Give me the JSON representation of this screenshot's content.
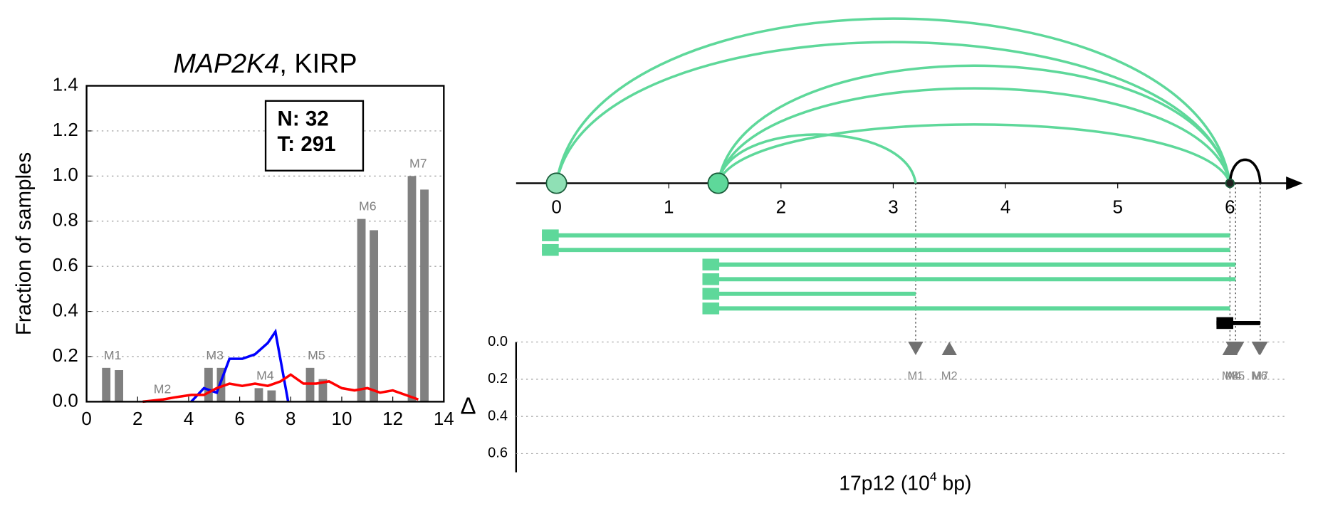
{
  "chart_data": [
    {
      "type": "bar",
      "title_parts": [
        "MAP2K4",
        ", KIRP"
      ],
      "ylabel": "Fraction of samples",
      "xlim": [
        0,
        14
      ],
      "xticks": [
        0,
        2,
        4,
        6,
        8,
        10,
        12,
        14
      ],
      "ylim": [
        0,
        1.4
      ],
      "yticks": [
        {
          "value": 0,
          "label": "0.0"
        },
        {
          "value": 0.2,
          "label": "0.2"
        },
        {
          "value": 0.4,
          "label": "0.4"
        },
        {
          "value": 0.6,
          "label": "0.6"
        },
        {
          "value": 0.8,
          "label": "0.8"
        },
        {
          "value": 1.0,
          "label": "1.0"
        },
        {
          "value": 1.2,
          "label": "1.2"
        },
        {
          "value": 1.4,
          "label": "1.4"
        }
      ],
      "grid": true,
      "box_text": [
        "N: 32",
        "T: 291"
      ],
      "bar_color": "#808080",
      "bar_groups": [
        {
          "label": "M1",
          "x": [
            0.77,
            1.27
          ],
          "values": [
            0.15,
            0.14
          ]
        },
        {
          "label": "M2",
          "x": [
            2.72,
            3.22
          ],
          "values": [
            0,
            0
          ]
        },
        {
          "label": "M3",
          "x": [
            4.78,
            5.27
          ],
          "values": [
            0.15,
            0.15
          ]
        },
        {
          "label": "M4",
          "x": [
            6.75,
            7.25
          ],
          "values": [
            0.06,
            0.05
          ]
        },
        {
          "label": "M5",
          "x": [
            8.76,
            9.26
          ],
          "values": [
            0.15,
            0.1
          ]
        },
        {
          "label": "M6",
          "x": [
            10.77,
            11.26
          ],
          "values": [
            0.81,
            0.76
          ]
        },
        {
          "label": "M7",
          "x": [
            12.75,
            13.24
          ],
          "values": [
            1.0,
            0.94
          ]
        }
      ],
      "series": [
        {
          "color": "#0000ff",
          "x": [
            4.1,
            4.6,
            5.1,
            5.6,
            6.1,
            6.6,
            7.1,
            7.4,
            7.9
          ],
          "values": [
            0,
            0.06,
            0.04,
            0.19,
            0.19,
            0.21,
            0.26,
            0.31,
            0
          ]
        },
        {
          "color": "#ff0000",
          "x": [
            2.2,
            3.0,
            3.5,
            4.1,
            4.6,
            5.1,
            5.6,
            6.1,
            6.6,
            7.1,
            7.6,
            8.0,
            8.5,
            9.0,
            9.5,
            10.0,
            10.5,
            11.0,
            11.5,
            12.0,
            12.5,
            13.0
          ],
          "values": [
            0,
            0.01,
            0.02,
            0.03,
            0.03,
            0.06,
            0.08,
            0.07,
            0.08,
            0.07,
            0.09,
            0.12,
            0.08,
            0.08,
            0.09,
            0.06,
            0.05,
            0.06,
            0.04,
            0.05,
            0.03,
            0.01
          ]
        }
      ]
    },
    {
      "type": "arc",
      "xlim": [
        -0.36,
        6.5
      ],
      "xticks": [
        0,
        1,
        2,
        3,
        4,
        5,
        6
      ],
      "xlabel_parts": [
        "17p12 (10",
        "4",
        " bp)"
      ],
      "color": "#5ed89a",
      "nodes": [
        {
          "x": 0,
          "color": "#8fe0b5"
        },
        {
          "x": 1.44,
          "color": "#5ed89a"
        },
        {
          "x": 6,
          "color": "#222222"
        }
      ],
      "arcs": [
        {
          "from": 0,
          "to": 6
        },
        {
          "from": 0,
          "to": 6
        },
        {
          "from": 1.44,
          "to": 6
        },
        {
          "from": 1.44,
          "to": 6
        },
        {
          "from": 1.44,
          "to": 6
        },
        {
          "from": 1.44,
          "to": 3.2
        },
        {
          "from": 6,
          "to": 6.27,
          "color": "#000000"
        }
      ],
      "transcripts": [
        {
          "start": -0.13,
          "end": 6.0
        },
        {
          "start": -0.13,
          "end": 6.0
        },
        {
          "start": 1.3,
          "end": 6.05
        },
        {
          "start": 1.3,
          "end": 6.05
        },
        {
          "start": 1.3,
          "end": 3.2
        },
        {
          "start": 1.3,
          "end": 6.0
        },
        {
          "start": 5.88,
          "end": 6.27,
          "color": "#000000"
        }
      ],
      "delta": {
        "ylabel": "Δ",
        "ylim": [
          0,
          0.7
        ],
        "yticks": [
          {
            "value": 0,
            "label": "0.0"
          },
          {
            "value": 0.2,
            "label": "0.2"
          },
          {
            "value": 0.4,
            "label": "0.4"
          },
          {
            "value": 0.6,
            "label": "0.6"
          }
        ],
        "grid": true,
        "marker_color": "#707070",
        "markers": [
          {
            "label": "M1",
            "x": 3.2,
            "value": 0.03,
            "direction": "down"
          },
          {
            "label": "M2",
            "x": 3.5,
            "value": 0.03,
            "direction": "up"
          },
          {
            "label": "M3",
            "x": 6.0,
            "value": 0.03,
            "direction": "up"
          },
          {
            "label": "M4",
            "x": 6.03,
            "value": 0.03,
            "direction": "down"
          },
          {
            "label": "M5",
            "x": 6.06,
            "value": 0.03,
            "direction": "down"
          },
          {
            "label": "M6",
            "x": 6.26,
            "value": 0.03,
            "direction": "down"
          },
          {
            "label": "M7",
            "x": 6.27,
            "value": 0.03,
            "direction": "down"
          }
        ]
      }
    }
  ]
}
